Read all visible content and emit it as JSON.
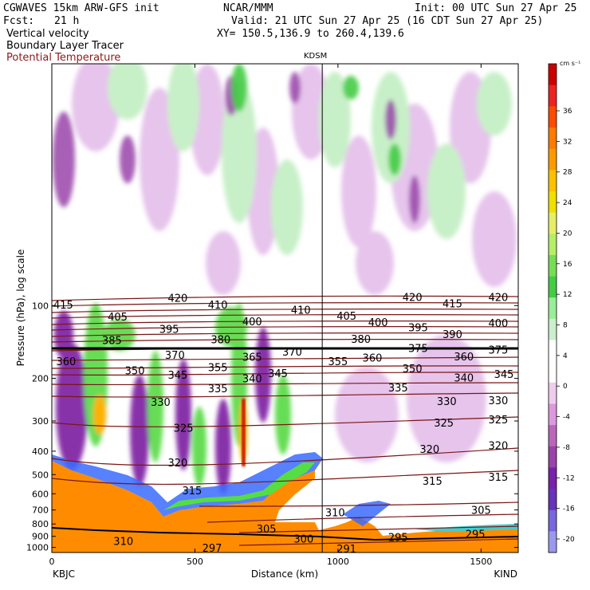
{
  "header": {
    "model": "CGWAVES 15km ARW-GFS init",
    "center": "NCAR/MMM",
    "init": "Init: 00 UTC Sun 27 Apr 25",
    "fcst_label": "Fcst:",
    "fcst_value": "21 h",
    "valid": "Valid: 21 UTC Sun 27 Apr 25 (16 CDT Sun 27 Apr 25)",
    "field1": "Vertical velocity",
    "field2": "Boundary Layer Tracer",
    "field3": "Potential Temperature",
    "xy": "XY= 150.5,136.9 to 260.4,139.6",
    "station_mid": "KDSM",
    "colors": {
      "field3": "#8b1a1a"
    }
  },
  "chart_data": {
    "type": "heatmap",
    "xlabel": "Distance (km)",
    "ylabel": "Pressure (hPa), log scale",
    "x_ticks": [
      0,
      500,
      1000,
      1500
    ],
    "xlim": [
      0,
      1630
    ],
    "y_ticks": [
      100,
      200,
      300,
      400,
      500,
      600,
      700,
      800,
      900,
      1000
    ],
    "ylim": [
      1050,
      10
    ],
    "y_scale": "log",
    "left_station": "KBJC",
    "right_station": "KIND",
    "marker_station": "KDSM",
    "marker_x": 945,
    "colorbar": {
      "unit": "cm s⁻¹",
      "ticks": [
        36,
        32,
        28,
        24,
        20,
        16,
        12,
        8,
        4,
        0,
        -4,
        -8,
        -12,
        -16,
        -20
      ],
      "colors": [
        "#cc0000",
        "#ee2222",
        "#ff4a00",
        "#ff7a00",
        "#ff9a00",
        "#ffc000",
        "#f0e000",
        "#e6ee66",
        "#b6ee66",
        "#77dd55",
        "#44cc44",
        "#99ee99",
        "#cceecc",
        "#ffffff",
        "#ffffff",
        "#eeccee",
        "#dd99dd",
        "#bb66bb",
        "#9944aa",
        "#7722aa",
        "#6633bb",
        "#7766dd",
        "#9999ee"
      ]
    },
    "theta_labels": [
      {
        "v": "415",
        "x": 40,
        "p": 99
      },
      {
        "v": "405",
        "x": 230,
        "p": 111
      },
      {
        "v": "420",
        "x": 440,
        "p": 93
      },
      {
        "v": "410",
        "x": 580,
        "p": 99
      },
      {
        "v": "400",
        "x": 700,
        "p": 116
      },
      {
        "v": "410",
        "x": 870,
        "p": 104
      },
      {
        "v": "405",
        "x": 1030,
        "p": 110
      },
      {
        "v": "400",
        "x": 1140,
        "p": 117
      },
      {
        "v": "420",
        "x": 1260,
        "p": 92
      },
      {
        "v": "395",
        "x": 1280,
        "p": 123
      },
      {
        "v": "415",
        "x": 1400,
        "p": 98
      },
      {
        "v": "390",
        "x": 1400,
        "p": 131
      },
      {
        "v": "420",
        "x": 1560,
        "p": 92
      },
      {
        "v": "400",
        "x": 1560,
        "p": 118
      },
      {
        "v": "395",
        "x": 410,
        "p": 125
      },
      {
        "v": "385",
        "x": 210,
        "p": 139
      },
      {
        "v": "380",
        "x": 590,
        "p": 138
      },
      {
        "v": "380",
        "x": 1080,
        "p": 137
      },
      {
        "v": "375",
        "x": 1280,
        "p": 150
      },
      {
        "v": "375",
        "x": 1560,
        "p": 152
      },
      {
        "v": "370",
        "x": 840,
        "p": 155
      },
      {
        "v": "370",
        "x": 430,
        "p": 160
      },
      {
        "v": "365",
        "x": 700,
        "p": 163
      },
      {
        "v": "360",
        "x": 50,
        "p": 170
      },
      {
        "v": "360",
        "x": 1120,
        "p": 164
      },
      {
        "v": "355",
        "x": 580,
        "p": 180
      },
      {
        "v": "355",
        "x": 1000,
        "p": 170
      },
      {
        "v": "360",
        "x": 1440,
        "p": 162
      },
      {
        "v": "350",
        "x": 290,
        "p": 185
      },
      {
        "v": "350",
        "x": 1260,
        "p": 182
      },
      {
        "v": "345",
        "x": 440,
        "p": 193
      },
      {
        "v": "345",
        "x": 790,
        "p": 190
      },
      {
        "v": "345",
        "x": 1580,
        "p": 192
      },
      {
        "v": "340",
        "x": 700,
        "p": 200
      },
      {
        "v": "340",
        "x": 1440,
        "p": 198
      },
      {
        "v": "335",
        "x": 580,
        "p": 220
      },
      {
        "v": "335",
        "x": 1210,
        "p": 218
      },
      {
        "v": "330",
        "x": 380,
        "p": 250
      },
      {
        "v": "330",
        "x": 1380,
        "p": 248
      },
      {
        "v": "330",
        "x": 1560,
        "p": 246
      },
      {
        "v": "325",
        "x": 460,
        "p": 320
      },
      {
        "v": "325",
        "x": 1370,
        "p": 305
      },
      {
        "v": "325",
        "x": 1560,
        "p": 296
      },
      {
        "v": "320",
        "x": 440,
        "p": 445
      },
      {
        "v": "320",
        "x": 1320,
        "p": 392
      },
      {
        "v": "320",
        "x": 1560,
        "p": 378
      },
      {
        "v": "315",
        "x": 490,
        "p": 580
      },
      {
        "v": "315",
        "x": 1330,
        "p": 530
      },
      {
        "v": "315",
        "x": 1560,
        "p": 510
      },
      {
        "v": "310",
        "x": 990,
        "p": 715
      },
      {
        "v": "305",
        "x": 750,
        "p": 835
      },
      {
        "v": "305",
        "x": 1500,
        "p": 700
      },
      {
        "v": "300",
        "x": 880,
        "p": 920
      },
      {
        "v": "295",
        "x": 1210,
        "p": 905
      },
      {
        "v": "295",
        "x": 1480,
        "p": 880
      },
      {
        "v": "310",
        "x": 250,
        "p": 940
      },
      {
        "v": "297",
        "x": 560,
        "p": 1005
      },
      {
        "v": "291",
        "x": 1030,
        "p": 1010
      }
    ]
  }
}
